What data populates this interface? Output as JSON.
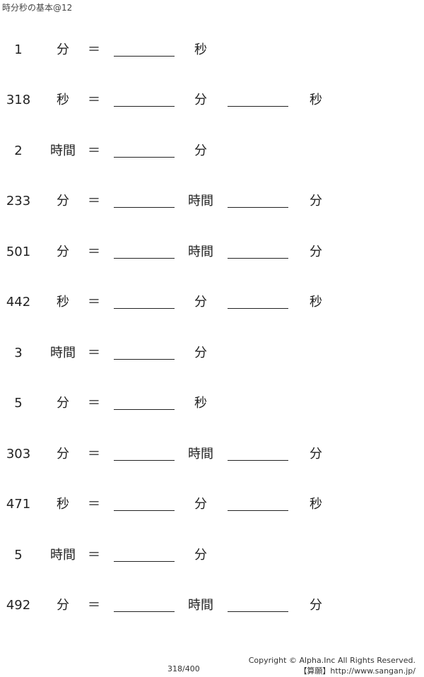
{
  "header": {
    "title": "時分秒の基本@12"
  },
  "equals": "＝",
  "problems": [
    {
      "n": "1",
      "from": "分",
      "to": [
        "秒"
      ]
    },
    {
      "n": "318",
      "from": "秒",
      "to": [
        "分",
        "秒"
      ]
    },
    {
      "n": "2",
      "from": "時間",
      "to": [
        "分"
      ]
    },
    {
      "n": "233",
      "from": "分",
      "to": [
        "時間",
        "分"
      ]
    },
    {
      "n": "501",
      "from": "分",
      "to": [
        "時間",
        "分"
      ]
    },
    {
      "n": "442",
      "from": "秒",
      "to": [
        "分",
        "秒"
      ]
    },
    {
      "n": "3",
      "from": "時間",
      "to": [
        "分"
      ]
    },
    {
      "n": "5",
      "from": "分",
      "to": [
        "秒"
      ]
    },
    {
      "n": "303",
      "from": "分",
      "to": [
        "時間",
        "分"
      ]
    },
    {
      "n": "471",
      "from": "秒",
      "to": [
        "分",
        "秒"
      ]
    },
    {
      "n": "5",
      "from": "時間",
      "to": [
        "分"
      ]
    },
    {
      "n": "492",
      "from": "分",
      "to": [
        "時間",
        "分"
      ]
    }
  ],
  "footer": {
    "page": "318/400",
    "copyright": "Copyright © Alpha.Inc All Rights Reserved.",
    "site": "【算願】http://www.sangan.jp/"
  }
}
